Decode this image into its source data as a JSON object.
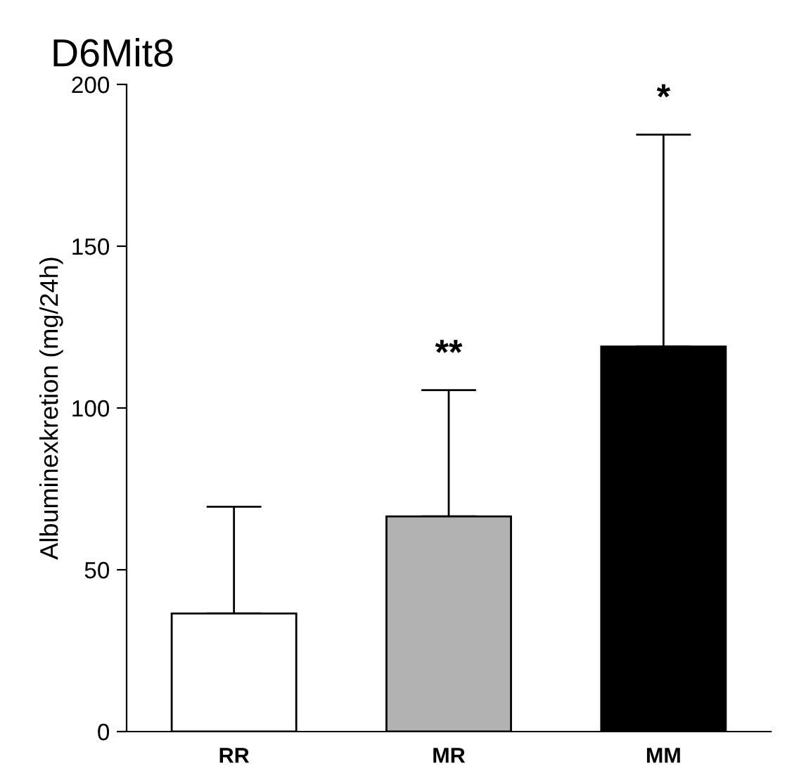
{
  "chart_data": {
    "type": "bar",
    "title": "D6Mit8",
    "ylabel": "Albuminexkretion (mg/24h)",
    "categories": [
      "RR",
      "MR",
      "MM"
    ],
    "values": [
      36.5,
      66.5,
      119
    ],
    "colors": [
      "#ffffff",
      "#b2b2b2",
      "#000000"
    ],
    "errors": [
      [
        36.5,
        69.5
      ],
      [
        66.5,
        105.5
      ],
      [
        119,
        184.5
      ]
    ],
    "annotations": [
      "**",
      "*"
    ],
    "ylim": [
      0,
      200
    ],
    "yticks": [
      0,
      50,
      100,
      150,
      200
    ],
    "grid": false
  }
}
